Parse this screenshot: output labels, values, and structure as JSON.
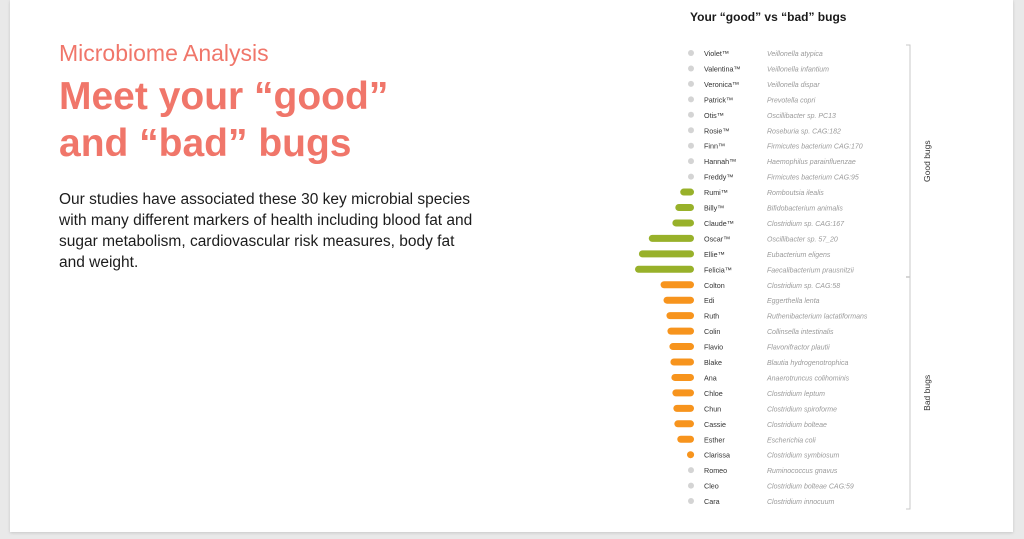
{
  "page": {
    "kicker": "Microbiome Analysis",
    "headline_line1": "Meet your “good”",
    "headline_line2": "and “bad” bugs",
    "body": "Our studies have associated these 30 key microbial species with many different markers of health including blood fat and sugar metabolism, cardiovascular risk measures, body fat and weight."
  },
  "colors": {
    "good": "#98b12a",
    "bad": "#f7941d",
    "neutral": "#d4d4d4",
    "accent": "#f0766a"
  },
  "chart_data": {
    "type": "bar",
    "title": "Your “good” vs “bad” bugs",
    "orientation": "horizontal",
    "xlim": [
      0,
      60
    ],
    "groups": [
      {
        "label": "Good bugs",
        "members": [
          "Violet™",
          "Valentina™",
          "Veronica™",
          "Patrick™",
          "Otis™",
          "Rosie™",
          "Finn™",
          "Hannah™",
          "Freddy™",
          "Rumi™",
          "Billy™",
          "Claude™",
          "Oscar™",
          "Ellie™",
          "Felicia™"
        ]
      },
      {
        "label": "Bad bugs",
        "members": [
          "Colton",
          "Edi",
          "Ruth",
          "Colin",
          "Flavio",
          "Blake",
          "Ana",
          "Chloe",
          "Chun",
          "Cassie",
          "Esther",
          "Clarissa",
          "Romeo",
          "Cleo",
          "Cara"
        ]
      }
    ],
    "categories": [
      "Violet™",
      "Valentina™",
      "Veronica™",
      "Patrick™",
      "Otis™",
      "Rosie™",
      "Finn™",
      "Hannah™",
      "Freddy™",
      "Rumi™",
      "Billy™",
      "Claude™",
      "Oscar™",
      "Ellie™",
      "Felicia™",
      "Colton",
      "Edi",
      "Ruth",
      "Colin",
      "Flavio",
      "Blake",
      "Ana",
      "Chloe",
      "Chun",
      "Cassie",
      "Esther",
      "Clarissa",
      "Romeo",
      "Cleo",
      "Cara"
    ],
    "species": [
      "Veillonella atypica",
      "Veillonella infantium",
      "Veillonella dispar",
      "Prevotella copri",
      "Oscillibacter sp. PC13",
      "Roseburia sp. CAG:182",
      "Firmicutes bacterium CAG:170",
      "Haemophilus parainfluenzae",
      "Firmicutes bacterium CAG:95",
      "Romboutsia ilealis",
      "Bifidobacterium animalis",
      "Clostridium sp. CAG:167",
      "Oscillibacter sp. 57_20",
      "Eubacterium eligens",
      "Faecalibacterium prausnitzii",
      "Clostridium sp. CAG:58",
      "Eggerthella lenta",
      "Ruthenibacterium lactatiformans",
      "Collinsella intestinalis",
      "Flavonifractor plautii",
      "Blautia hydrogenotrophica",
      "Anaerotruncus colihominis",
      "Clostridium leptum",
      "Clostridium spiroforme",
      "Clostridium bolteae",
      "Escherichia coli",
      "Clostridium symbiosum",
      "Ruminococcus gnavus",
      "Clostridium bolteae CAG:59",
      "Clostridium innocuum"
    ],
    "series": [
      {
        "values": [
          0,
          0,
          0,
          0,
          0,
          0,
          0,
          0,
          0,
          14,
          19,
          22,
          46,
          56,
          60,
          0,
          0,
          0,
          0,
          0,
          0,
          0,
          0,
          0,
          0,
          0,
          0,
          0,
          0,
          0
        ]
      },
      {
        "values": [
          0,
          0,
          0,
          0,
          0,
          0,
          0,
          0,
          0,
          0,
          0,
          0,
          0,
          0,
          0,
          34,
          31,
          28,
          27,
          25,
          24,
          23,
          22,
          21,
          20,
          17,
          7,
          0,
          0,
          0
        ]
      }
    ]
  }
}
